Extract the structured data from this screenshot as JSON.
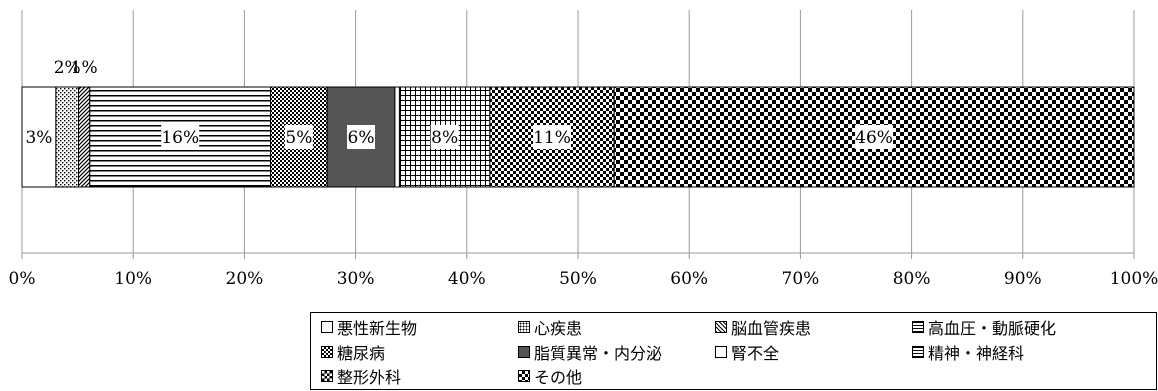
{
  "chart_data": {
    "type": "bar",
    "orientation": "horizontal",
    "stacked": true,
    "percent": true,
    "xlim": [
      0,
      100
    ],
    "x_ticks": [
      "0%",
      "10%",
      "20%",
      "30%",
      "40%",
      "50%",
      "60%",
      "70%",
      "80%",
      "90%",
      "100%"
    ],
    "grid": "vertical",
    "legend_position": "bottom-right",
    "series": [
      {
        "name": "悪性新生物",
        "value": 3,
        "label": "3%",
        "pattern": "white",
        "label_pos": "inside"
      },
      {
        "name": "心疾患",
        "value": 2,
        "label": "2%",
        "pattern": "dots",
        "label_pos": "above"
      },
      {
        "name": "脳血管疾患",
        "value": 1,
        "label": "1%",
        "pattern": "diag",
        "label_pos": "above"
      },
      {
        "name": "高血圧・動脈硬化",
        "value": 16,
        "label": "16%",
        "pattern": "hlines",
        "label_pos": "inside"
      },
      {
        "name": "糖尿病",
        "value": 5,
        "label": "5%",
        "pattern": "smallchecker",
        "label_pos": "inside"
      },
      {
        "name": "脂質異常・内分泌",
        "value": 6,
        "label": "6%",
        "pattern": "dark",
        "label_pos": "inside"
      },
      {
        "name": "腎不全",
        "value": 0.4,
        "label": "",
        "pattern": "white",
        "label_pos": "none"
      },
      {
        "name": "精神・神経科",
        "value": 8,
        "label": "8%",
        "pattern": "grid",
        "label_pos": "inside"
      },
      {
        "name": "整形外科",
        "value": 11,
        "label": "11%",
        "pattern": "medchecker",
        "label_pos": "inside"
      },
      {
        "name": "その他",
        "value": 46,
        "label": "46%",
        "pattern": "checker",
        "label_pos": "inside"
      }
    ]
  }
}
